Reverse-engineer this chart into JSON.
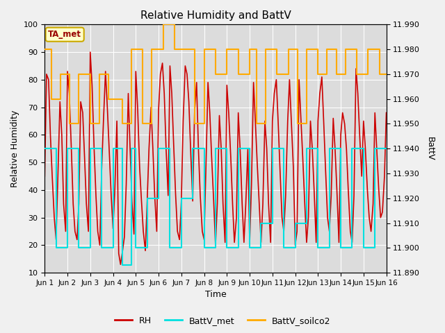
{
  "title": "Relative Humidity and BattV",
  "xlabel": "Time",
  "ylabel_left": "Relative Humidity",
  "ylabel_right": "BattV",
  "ylim_left": [
    10,
    100
  ],
  "ylim_right": [
    11.89,
    11.99
  ],
  "annotation_text": "TA_met",
  "bg_color": "#f0f0f0",
  "plot_bg_color": "#dcdcdc",
  "rh_color": "#cc0000",
  "battv_met_color": "#00e0e0",
  "battv_soilco2_color": "#ffaa00",
  "x_tick_labels": [
    "Jun 1",
    "Jun 2",
    "Jun 3",
    "Jun 4",
    "Jun 5",
    "Jun 6",
    "Jun 7",
    "Jun 8",
    "Jun 9",
    "Jun 10",
    "Jun 11",
    "Jun 12",
    "Jun 13",
    "Jun 14",
    "Jun 15",
    "Jun 16"
  ],
  "yticks_left": [
    10,
    20,
    30,
    40,
    50,
    60,
    70,
    80,
    90,
    100
  ],
  "yticks_right": [
    11.89,
    11.9,
    11.91,
    11.92,
    11.93,
    11.94,
    11.95,
    11.96,
    11.97,
    11.98,
    11.99
  ],
  "rh_x": [
    0.0,
    0.08,
    0.17,
    0.25,
    0.33,
    0.42,
    0.5,
    0.58,
    0.67,
    0.75,
    0.83,
    0.92,
    1.0,
    1.08,
    1.17,
    1.25,
    1.33,
    1.42,
    1.5,
    1.58,
    1.67,
    1.75,
    1.83,
    1.92,
    2.0,
    2.08,
    2.17,
    2.25,
    2.33,
    2.42,
    2.5,
    2.58,
    2.67,
    2.75,
    2.83,
    2.92,
    3.0,
    3.08,
    3.17,
    3.25,
    3.33,
    3.42,
    3.5,
    3.58,
    3.67,
    3.75,
    3.83,
    3.92,
    4.0,
    4.08,
    4.17,
    4.25,
    4.33,
    4.42,
    4.5,
    4.58,
    4.67,
    4.75,
    4.83,
    4.92,
    5.0,
    5.08,
    5.17,
    5.25,
    5.33,
    5.42,
    5.5,
    5.58,
    5.67,
    5.75,
    5.83,
    5.92,
    6.0,
    6.08,
    6.17,
    6.25,
    6.33,
    6.42,
    6.5,
    6.58,
    6.67,
    6.75,
    6.83,
    6.92,
    7.0,
    7.08,
    7.17,
    7.25,
    7.33,
    7.42,
    7.5,
    7.58,
    7.67,
    7.75,
    7.83,
    7.92,
    8.0,
    8.08,
    8.17,
    8.25,
    8.33,
    8.42,
    8.5,
    8.58,
    8.67,
    8.75,
    8.83,
    8.92,
    9.0,
    9.08,
    9.17,
    9.25,
    9.33,
    9.42,
    9.5,
    9.58,
    9.67,
    9.75,
    9.83,
    9.92,
    10.0,
    10.08,
    10.17,
    10.25,
    10.33,
    10.42,
    10.5,
    10.58,
    10.67,
    10.75,
    10.83,
    10.92,
    11.0,
    11.08,
    11.17,
    11.25,
    11.33,
    11.42,
    11.5,
    11.58,
    11.67,
    11.75,
    11.83,
    11.92,
    12.0,
    12.08,
    12.17,
    12.25,
    12.33,
    12.42,
    12.5,
    12.58,
    12.67,
    12.75,
    12.83,
    12.92,
    13.0,
    13.08,
    13.17,
    13.25,
    13.33,
    13.42,
    13.5,
    13.58,
    13.67,
    13.75,
    13.83,
    13.92,
    14.0,
    14.08,
    14.17,
    14.25,
    14.33,
    14.42,
    14.5,
    14.58,
    14.67,
    14.75,
    14.83,
    14.92,
    15.0
  ],
  "rh_y": [
    45,
    82,
    80,
    60,
    45,
    30,
    22,
    45,
    72,
    60,
    35,
    25,
    83,
    75,
    55,
    35,
    25,
    22,
    35,
    72,
    68,
    52,
    35,
    25,
    90,
    78,
    55,
    38,
    25,
    20,
    47,
    65,
    83,
    70,
    55,
    38,
    26,
    40,
    65,
    17,
    13,
    18,
    23,
    42,
    75,
    55,
    36,
    24,
    83,
    70,
    48,
    36,
    25,
    18,
    36,
    55,
    70,
    55,
    38,
    25,
    69,
    82,
    86,
    75,
    55,
    38,
    85,
    75,
    55,
    38,
    25,
    22,
    36,
    65,
    85,
    82,
    72,
    52,
    36,
    68,
    79,
    55,
    38,
    25,
    22,
    48,
    79,
    68,
    52,
    36,
    20,
    35,
    67,
    55,
    35,
    21,
    78,
    68,
    52,
    35,
    21,
    30,
    68,
    55,
    35,
    21,
    35,
    55,
    21,
    42,
    79,
    65,
    50,
    35,
    21,
    35,
    65,
    55,
    35,
    21,
    65,
    75,
    80,
    65,
    48,
    30,
    25,
    38,
    65,
    80,
    65,
    48,
    20,
    25,
    80,
    66,
    52,
    35,
    21,
    30,
    65,
    55,
    40,
    21,
    65,
    75,
    81,
    65,
    48,
    30,
    25,
    38,
    66,
    55,
    40,
    21,
    60,
    68,
    64,
    55,
    40,
    25,
    21,
    38,
    84,
    75,
    60,
    45,
    65,
    55,
    40,
    30,
    25,
    35,
    68,
    55,
    40,
    30,
    32,
    45,
    68
  ],
  "bm_x": [
    0.0,
    0.5,
    0.5,
    1.0,
    1.0,
    1.5,
    1.5,
    2.0,
    2.0,
    2.5,
    2.5,
    3.0,
    3.0,
    3.4,
    3.4,
    3.8,
    3.8,
    4.0,
    4.0,
    4.5,
    4.5,
    5.0,
    5.0,
    5.5,
    5.5,
    6.0,
    6.0,
    6.5,
    6.5,
    7.0,
    7.0,
    7.5,
    7.5,
    8.0,
    8.0,
    8.5,
    8.5,
    9.0,
    9.0,
    9.5,
    9.5,
    10.0,
    10.0,
    10.5,
    10.5,
    11.0,
    11.0,
    11.5,
    11.5,
    12.0,
    12.0,
    12.5,
    12.5,
    13.0,
    13.0,
    13.5,
    13.5,
    14.0,
    14.0,
    14.5,
    14.5,
    15.0
  ],
  "bm_y": [
    11.94,
    11.94,
    11.9,
    11.9,
    11.94,
    11.94,
    11.9,
    11.9,
    11.94,
    11.94,
    11.9,
    11.9,
    11.94,
    11.94,
    11.893,
    11.893,
    11.94,
    11.94,
    11.9,
    11.9,
    11.92,
    11.92,
    11.94,
    11.94,
    11.9,
    11.9,
    11.92,
    11.92,
    11.94,
    11.94,
    11.9,
    11.9,
    11.94,
    11.94,
    11.9,
    11.9,
    11.94,
    11.94,
    11.9,
    11.9,
    11.91,
    11.91,
    11.94,
    11.94,
    11.9,
    11.9,
    11.91,
    11.91,
    11.94,
    11.94,
    11.9,
    11.9,
    11.94,
    11.94,
    11.9,
    11.9,
    11.94,
    11.94,
    11.9,
    11.9,
    11.94,
    11.94
  ],
  "bs_x": [
    0.0,
    0.3,
    0.3,
    0.7,
    0.7,
    1.1,
    1.1,
    1.5,
    1.5,
    2.0,
    2.0,
    2.4,
    2.4,
    2.8,
    2.8,
    3.1,
    3.1,
    3.4,
    3.4,
    3.6,
    3.6,
    3.8,
    3.8,
    4.3,
    4.3,
    4.7,
    4.7,
    5.2,
    5.2,
    5.7,
    5.7,
    6.1,
    6.1,
    6.6,
    6.6,
    7.0,
    7.0,
    7.5,
    7.5,
    8.0,
    8.0,
    8.5,
    8.5,
    9.0,
    9.0,
    9.3,
    9.3,
    9.7,
    9.7,
    10.2,
    10.2,
    10.7,
    10.7,
    11.1,
    11.1,
    11.5,
    11.5,
    12.0,
    12.0,
    12.4,
    12.4,
    12.8,
    12.8,
    13.2,
    13.2,
    13.7,
    13.7,
    14.2,
    14.2,
    14.7,
    14.7,
    15.0
  ],
  "bs_y": [
    11.98,
    11.98,
    11.96,
    11.96,
    11.97,
    11.97,
    11.95,
    11.95,
    11.97,
    11.97,
    11.95,
    11.95,
    11.97,
    11.97,
    11.96,
    11.96,
    11.96,
    11.96,
    11.95,
    11.95,
    11.95,
    11.95,
    11.98,
    11.98,
    11.95,
    11.95,
    11.98,
    11.98,
    11.99,
    11.99,
    11.98,
    11.98,
    11.98,
    11.98,
    11.95,
    11.95,
    11.98,
    11.98,
    11.97,
    11.97,
    11.98,
    11.98,
    11.97,
    11.97,
    11.98,
    11.98,
    11.95,
    11.95,
    11.98,
    11.98,
    11.97,
    11.97,
    11.98,
    11.98,
    11.95,
    11.95,
    11.98,
    11.98,
    11.97,
    11.97,
    11.98,
    11.98,
    11.97,
    11.97,
    11.98,
    11.98,
    11.97,
    11.97,
    11.98,
    11.98,
    11.97,
    11.97
  ]
}
